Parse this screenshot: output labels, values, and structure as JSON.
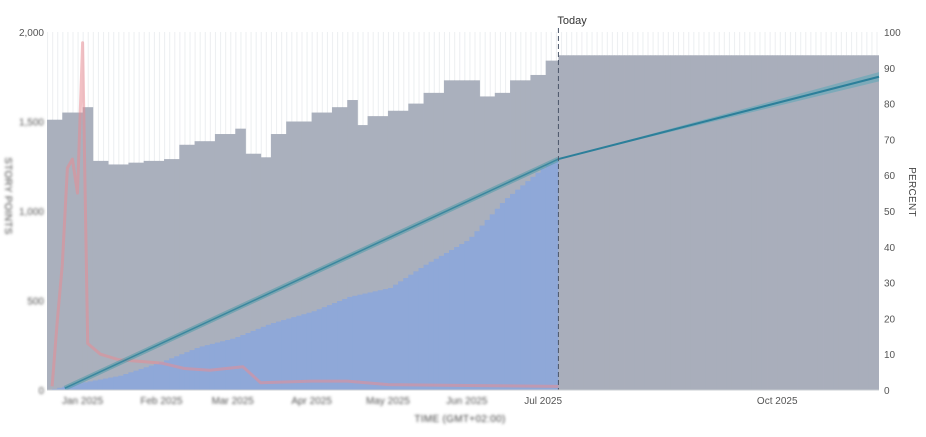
{
  "chart_data": {
    "type": "bar",
    "y_left": {
      "label": "STORY POINTS",
      "range": [
        0,
        2000
      ],
      "ticks": [
        {
          "value": 0,
          "label": "0"
        },
        {
          "value": 500,
          "label": "500"
        },
        {
          "value": 1000,
          "label": "1,000"
        },
        {
          "value": 1500,
          "label": "1,500"
        },
        {
          "value": 2000,
          "label": "2,000"
        }
      ]
    },
    "y_right": {
      "label": "PERCENT",
      "range": [
        0,
        100
      ],
      "ticks": [
        0,
        10,
        20,
        30,
        40,
        50,
        60,
        70,
        80,
        90,
        100
      ]
    },
    "x_axis": {
      "label": "TIME (GMT+02:00)",
      "start": "2024-12-18",
      "end": "2025-11-10",
      "ticks": [
        {
          "date": "2025-01-01",
          "label": "Jan 2025"
        },
        {
          "date": "2025-02-01",
          "label": "Feb 2025"
        },
        {
          "date": "2025-03-01",
          "label": "Mar 2025"
        },
        {
          "date": "2025-04-01",
          "label": "Apr 2025"
        },
        {
          "date": "2025-05-01",
          "label": "May 2025"
        },
        {
          "date": "2025-06-01",
          "label": "Jun 2025"
        },
        {
          "date": "2025-07-01",
          "label": "Jul 2025"
        },
        {
          "date": "2025-10-01",
          "label": "Oct 2025"
        }
      ]
    },
    "today": {
      "date": "2025-07-07",
      "label": "Today"
    },
    "forecast": {
      "start": "2025-07-07",
      "end": "2025-11-10",
      "scope": 1870,
      "completion_start_percent": 64.5,
      "completion_end_percent": 87.5,
      "band_width_percent": 1.3
    },
    "grid": false,
    "colors": {
      "scope": "#aab0bd",
      "done": "#8fa8d8",
      "forecast_scope": "#a9aebb",
      "forecast_line": "#2c7f9a",
      "forecast_band": "#6fa8b8",
      "trend": "#4f9aa8",
      "warning": "#e88d94",
      "column_tint": "#eef0f2"
    },
    "series": [
      {
        "type": "area",
        "values": [
          [
            "2024-12-18",
            1510
          ],
          [
            "2024-12-24",
            1550
          ],
          [
            "2024-12-31",
            1580
          ],
          [
            "2025-01-04",
            1280
          ],
          [
            "2025-01-11",
            1260
          ],
          [
            "2025-01-18",
            1270
          ],
          [
            "2025-01-25",
            1280
          ],
          [
            "2025-02-01",
            1290
          ],
          [
            "2025-02-07",
            1370
          ],
          [
            "2025-02-14",
            1390
          ],
          [
            "2025-02-21",
            1430
          ],
          [
            "2025-03-01",
            1460
          ],
          [
            "2025-03-05",
            1320
          ],
          [
            "2025-03-11",
            1300
          ],
          [
            "2025-03-15",
            1430
          ],
          [
            "2025-03-22",
            1500
          ],
          [
            "2025-04-01",
            1550
          ],
          [
            "2025-04-08",
            1580
          ],
          [
            "2025-04-15",
            1620
          ],
          [
            "2025-04-18",
            1480
          ],
          [
            "2025-04-22",
            1530
          ],
          [
            "2025-05-01",
            1560
          ],
          [
            "2025-05-08",
            1600
          ],
          [
            "2025-05-15",
            1660
          ],
          [
            "2025-05-22",
            1730
          ],
          [
            "2025-06-01",
            1730
          ],
          [
            "2025-06-06",
            1640
          ],
          [
            "2025-06-12",
            1660
          ],
          [
            "2025-06-18",
            1730
          ],
          [
            "2025-06-25",
            1760
          ],
          [
            "2025-07-01",
            1840
          ],
          [
            "2025-07-07",
            1870
          ]
        ]
      },
      {
        "type": "area",
        "values": [
          [
            "2024-12-18",
            0
          ],
          [
            "2024-12-31",
            40
          ],
          [
            "2025-01-15",
            80
          ],
          [
            "2025-02-01",
            160
          ],
          [
            "2025-02-15",
            240
          ],
          [
            "2025-03-01",
            290
          ],
          [
            "2025-03-15",
            370
          ],
          [
            "2025-04-01",
            440
          ],
          [
            "2025-04-15",
            520
          ],
          [
            "2025-05-01",
            570
          ],
          [
            "2025-05-15",
            700
          ],
          [
            "2025-06-01",
            840
          ],
          [
            "2025-06-15",
            1060
          ],
          [
            "2025-07-01",
            1250
          ],
          [
            "2025-07-07",
            1290
          ]
        ]
      },
      {
        "type": "line",
        "values": [
          [
            "2024-12-25",
            0.5
          ],
          [
            "2025-07-07",
            64.5
          ]
        ]
      },
      {
        "type": "line",
        "values": [
          [
            "2024-12-20",
            20
          ],
          [
            "2024-12-22",
            380
          ],
          [
            "2024-12-24",
            700
          ],
          [
            "2024-12-26",
            1240
          ],
          [
            "2024-12-28",
            1290
          ],
          [
            "2024-12-30",
            1100
          ],
          [
            "2025-01-01",
            1940
          ],
          [
            "2025-01-03",
            260
          ],
          [
            "2025-01-08",
            200
          ],
          [
            "2025-01-15",
            170
          ],
          [
            "2025-02-01",
            150
          ],
          [
            "2025-02-10",
            120
          ],
          [
            "2025-02-20",
            110
          ],
          [
            "2025-03-05",
            130
          ],
          [
            "2025-03-12",
            40
          ],
          [
            "2025-04-01",
            50
          ],
          [
            "2025-04-15",
            50
          ],
          [
            "2025-05-01",
            30
          ],
          [
            "2025-06-01",
            25
          ],
          [
            "2025-07-07",
            20
          ]
        ]
      }
    ]
  }
}
